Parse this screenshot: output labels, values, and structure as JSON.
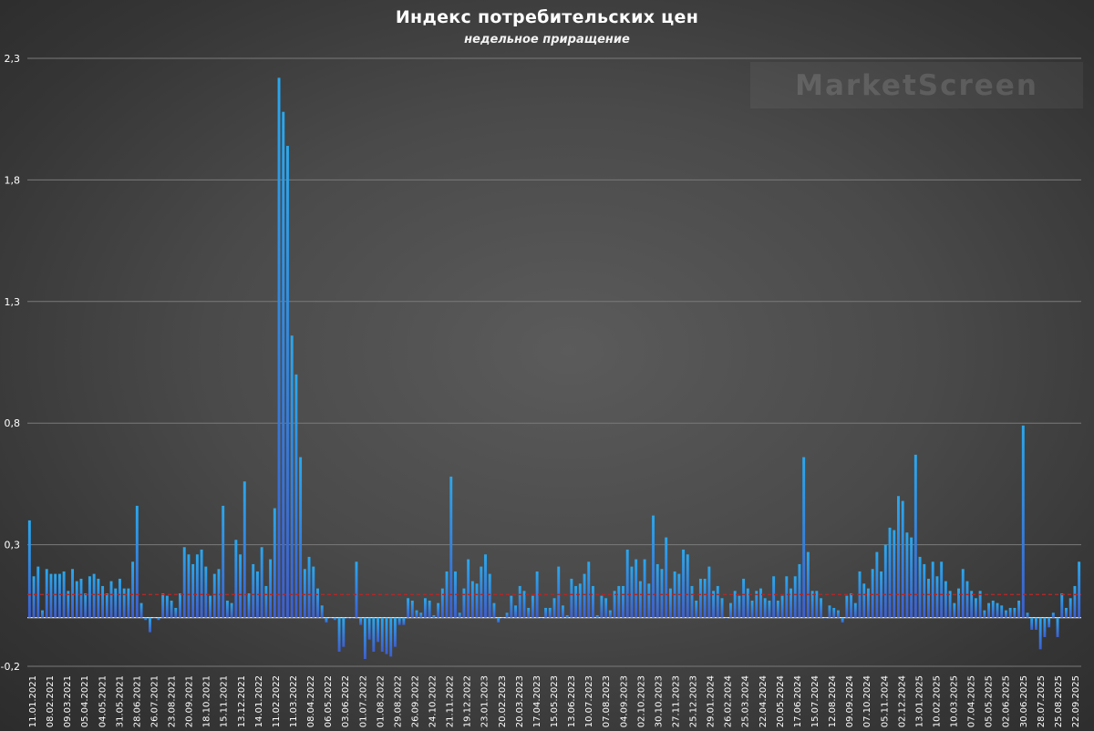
{
  "chart_data": {
    "type": "bar",
    "title": "Индекс потребительских цен",
    "subtitle": "недельное приращение",
    "watermark": "MarketScreen",
    "ylim": [
      -0.2,
      2.3
    ],
    "y_ticks": [
      "-0,2",
      "0,3",
      "0,8",
      "1,3",
      "1,8",
      "2,3"
    ],
    "y_tick_values": [
      -0.2,
      0.3,
      0.8,
      1.3,
      1.8,
      2.3
    ],
    "x_labels": [
      "11.01.2021",
      "08.02.2021",
      "09.03.2021",
      "05.04.2021",
      "04.05.2021",
      "31.05.2021",
      "28.06.2021",
      "26.07.2021",
      "23.08.2021",
      "20.09.2021",
      "18.10.2021",
      "15.11.2021",
      "13.12.2021",
      "14.01.2022",
      "11.02.2022",
      "11.03.2022",
      "08.04.2022",
      "06.05.2022",
      "03.06.2022",
      "01.07.2022",
      "01.08.2022",
      "29.08.2022",
      "26.09.2022",
      "24.10.2022",
      "21.11.2022",
      "19.12.2022",
      "23.01.2023",
      "20.02.2023",
      "20.03.2023",
      "17.04.2023",
      "15.05.2023",
      "13.06.2023",
      "10.07.2023",
      "07.08.2023",
      "04.09.2023",
      "02.10.2023",
      "30.10.2023",
      "27.11.2023",
      "25.12.2023",
      "29.01.2024",
      "26.02.2024",
      "25.03.2024",
      "22.04.2024",
      "20.05.2024",
      "17.06.2024",
      "15.07.2024",
      "12.08.2024",
      "09.09.2024",
      "07.10.2024",
      "05.11.2024",
      "02.12.2024",
      "13.01.2025",
      "10.02.2025",
      "10.03.2025",
      "07.04.2025",
      "05.05.2025",
      "02.06.2025",
      "30.06.2025",
      "28.07.2025",
      "25.08.2025",
      "22.09.2025"
    ],
    "reference_line": 0.095,
    "values": [
      0.4,
      0.17,
      0.21,
      0.03,
      0.2,
      0.18,
      0.18,
      0.18,
      0.19,
      0.11,
      0.2,
      0.15,
      0.16,
      0.1,
      0.17,
      0.18,
      0.16,
      0.13,
      0.1,
      0.15,
      0.12,
      0.16,
      0.12,
      0.12,
      0.23,
      0.46,
      0.06,
      -0.01,
      -0.06,
      0,
      -0.01,
      0.1,
      0.09,
      0.07,
      0.04,
      0.1,
      0.29,
      0.26,
      0.22,
      0.26,
      0.28,
      0.21,
      0.09,
      0.18,
      0.2,
      0.46,
      0.07,
      0.06,
      0.32,
      0.26,
      0.56,
      0.1,
      0.22,
      0.19,
      0.29,
      0.13,
      0.24,
      0.45,
      2.22,
      2.08,
      1.94,
      1.16,
      1,
      0.66,
      0.2,
      0.25,
      0.21,
      0.12,
      0.05,
      -0.02,
      0,
      -0.01,
      -0.14,
      -0.12,
      0,
      0,
      0.23,
      -0.03,
      -0.17,
      -0.09,
      -0.14,
      -0.1,
      -0.14,
      -0.15,
      -0.16,
      -0.12,
      -0.03,
      -0.03,
      0.08,
      0.07,
      0.03,
      0.02,
      0.08,
      0.07,
      0.01,
      0.06,
      0.12,
      0.19,
      0.58,
      0.19,
      0.02,
      0.12,
      0.24,
      0.15,
      0.14,
      0.21,
      0.26,
      0.18,
      0.06,
      -0.02,
      0,
      0.02,
      0.09,
      0.05,
      0.13,
      0.11,
      0.04,
      0.09,
      0.19,
      0,
      0.04,
      0.04,
      0.08,
      0.21,
      0.05,
      0.01,
      0.16,
      0.13,
      0.14,
      0.18,
      0.23,
      0.13,
      0.01,
      0.09,
      0.08,
      0.03,
      0.11,
      0.13,
      0.13,
      0.28,
      0.21,
      0.24,
      0.15,
      0.24,
      0.14,
      0.42,
      0.22,
      0.2,
      0.33,
      0.12,
      0.19,
      0.18,
      0.28,
      0.26,
      0.13,
      0.07,
      0.16,
      0.16,
      0.21,
      0.11,
      0.13,
      0.08,
      0,
      0.06,
      0.11,
      0.09,
      0.16,
      0.12,
      0.07,
      0.11,
      0.12,
      0.08,
      0.07,
      0.17,
      0.07,
      0.09,
      0.17,
      0.12,
      0.17,
      0.22,
      0.66,
      0.27,
      0.11,
      0.11,
      0.08,
      0,
      0.05,
      0.04,
      0.03,
      -0.02,
      0.09,
      0.1,
      0.06,
      0.19,
      0.14,
      0.12,
      0.2,
      0.27,
      0.19,
      0.3,
      0.37,
      0.36,
      0.5,
      0.48,
      0.35,
      0.33,
      0.67,
      0.25,
      0.22,
      0.16,
      0.23,
      0.17,
      0.23,
      0.15,
      0.11,
      0.06,
      0.12,
      0.2,
      0.15,
      0.11,
      0.08,
      0.11,
      0.03,
      0.06,
      0.07,
      0.06,
      0.05,
      0.03,
      0.04,
      0.04,
      0.07,
      0.79,
      0.02,
      -0.05,
      -0.05,
      -0.13,
      -0.08,
      -0.04,
      0.02,
      -0.08,
      0.1,
      0.04,
      0.08,
      0.13,
      0.23
    ],
    "colors": {
      "bar_top": "#2aa8ee",
      "bar_bottom": "#3d5fd0",
      "reference_line": "#b02828",
      "grid": "#7a7a7a",
      "text": "#ffffff"
    },
    "grid": true
  }
}
